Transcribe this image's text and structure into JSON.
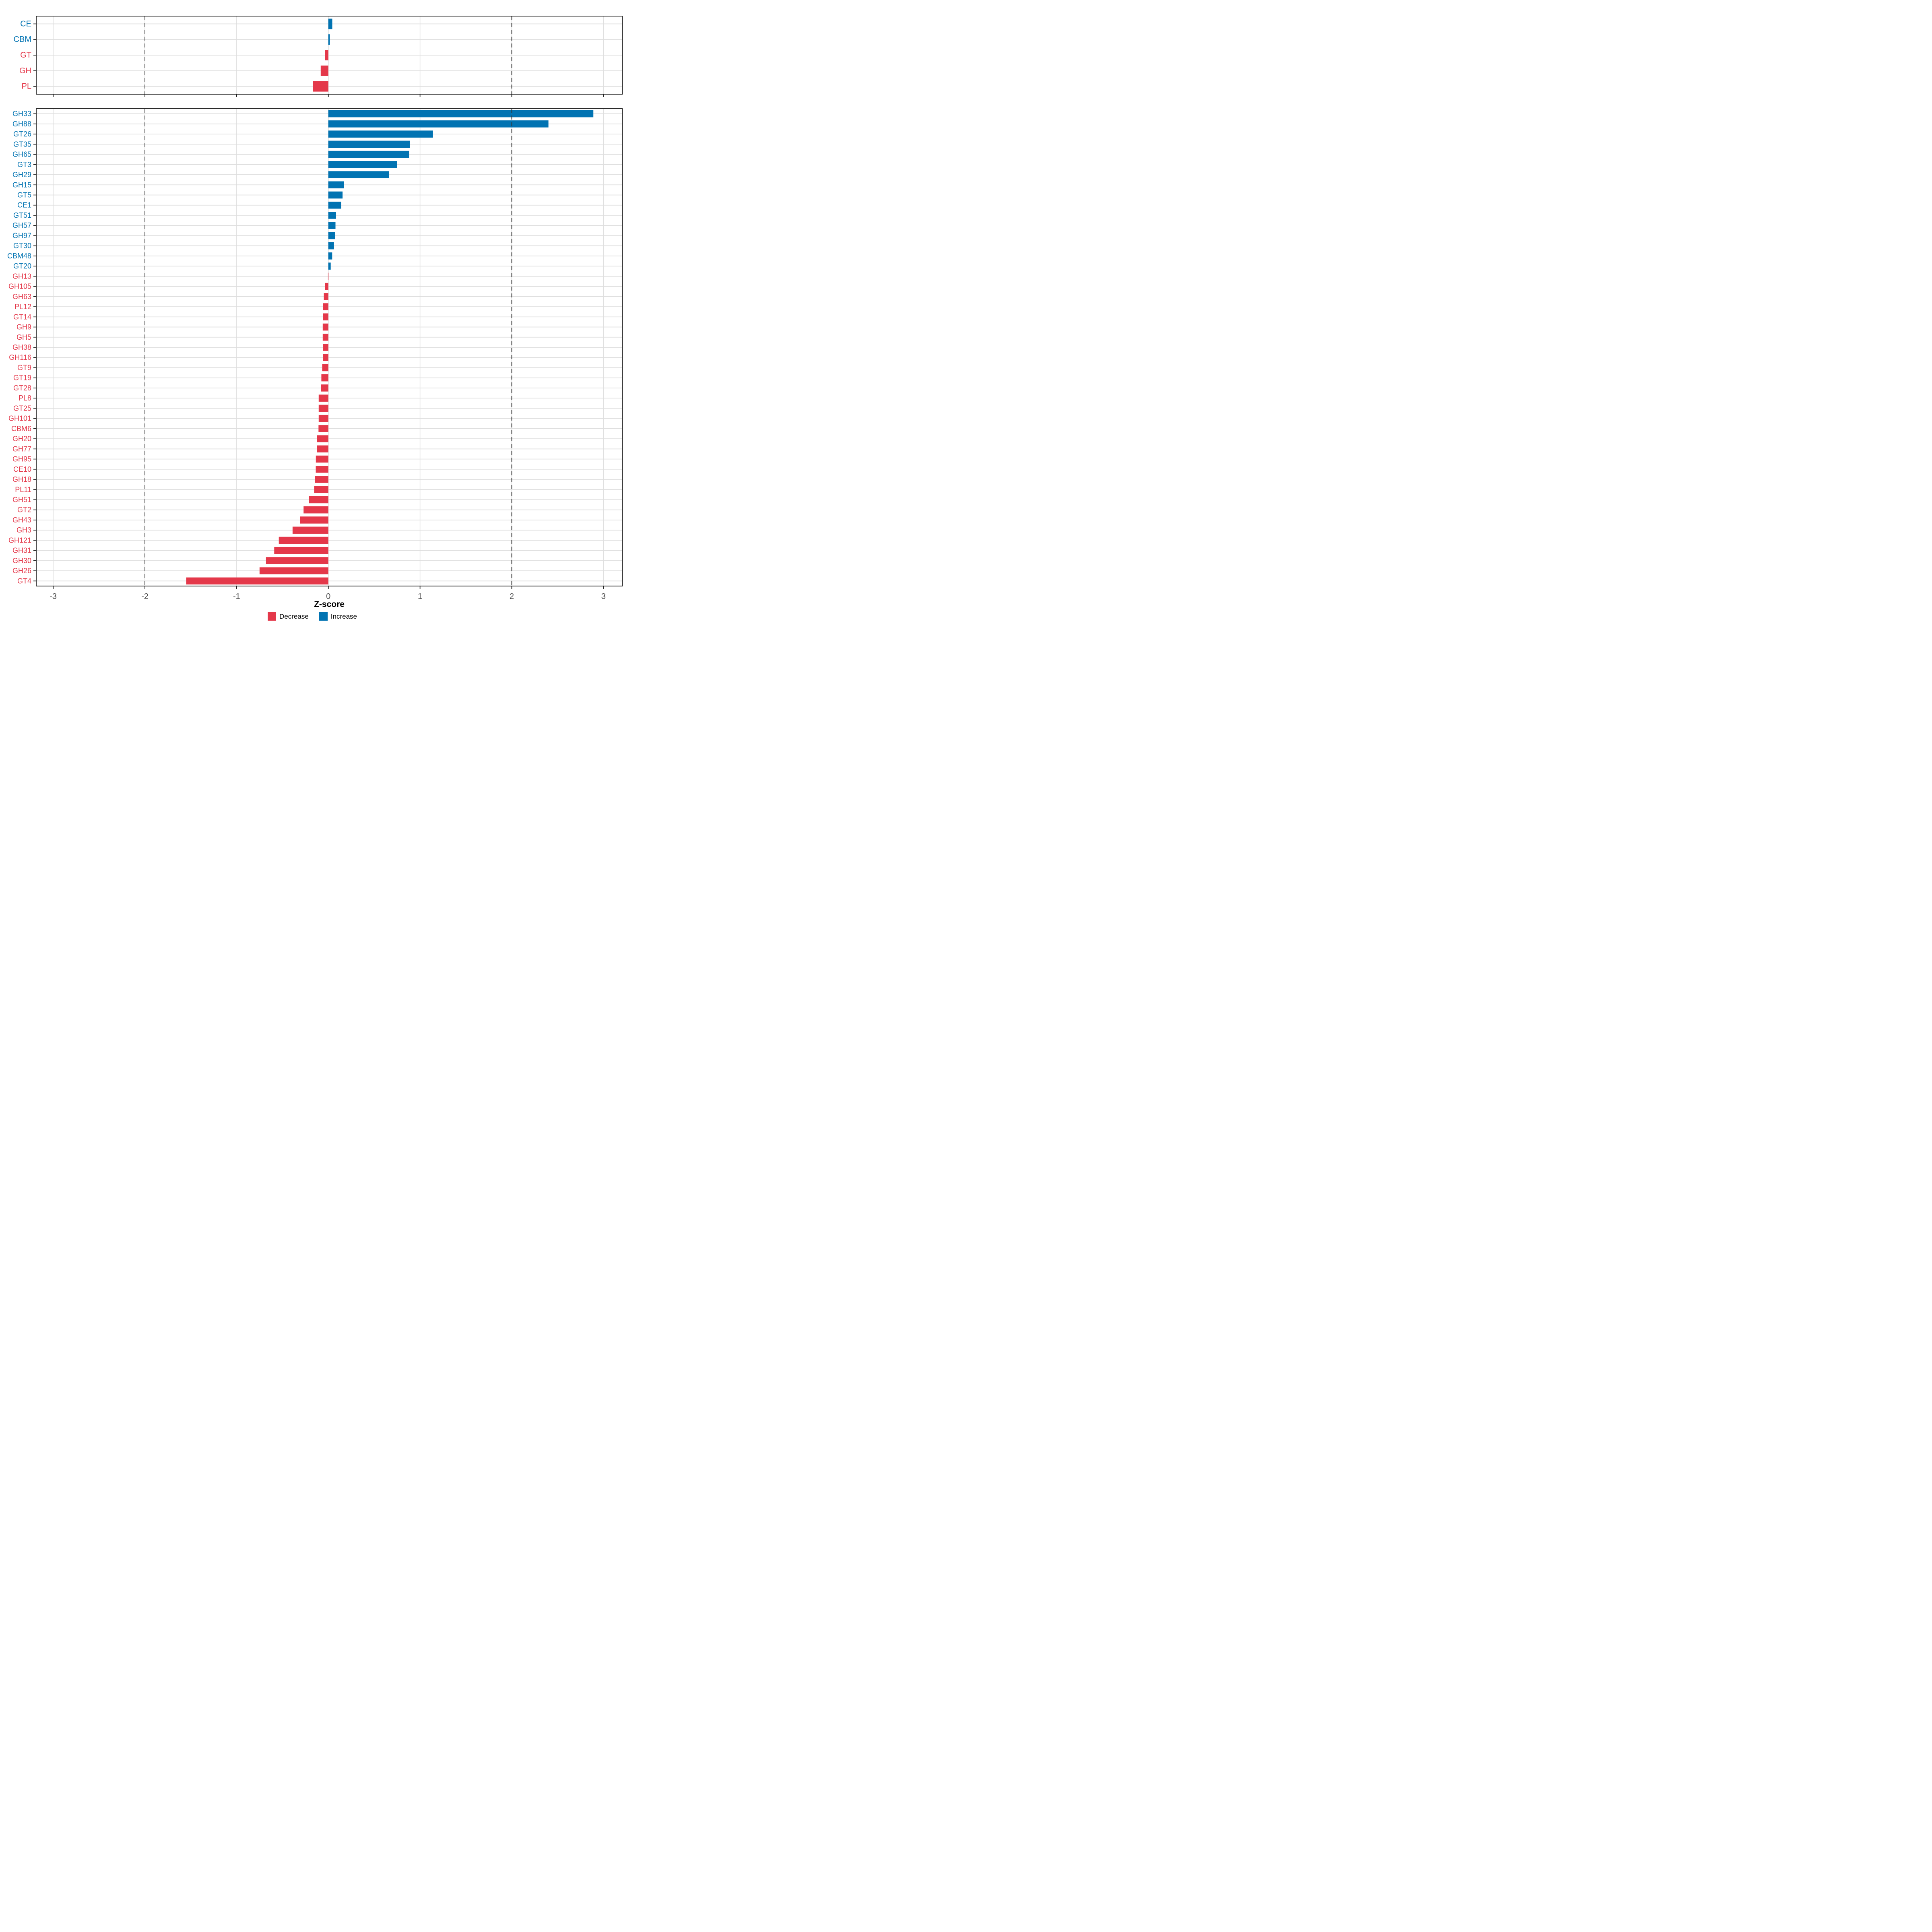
{
  "axis": {
    "title": "Z-score",
    "ticks": [
      -3,
      -2,
      -1,
      0,
      1,
      2,
      3
    ],
    "xlim": [
      -3.185,
      3.205
    ],
    "dashed_vlines": [
      -2,
      2
    ]
  },
  "colors": {
    "increase": "#0173B2",
    "decrease": "#E4384A",
    "grid": "#DEDEDE",
    "axis_text": "#4D4D4D",
    "panel_border": "#141414",
    "tick": "#1A1A1A",
    "dashed_line": "#333333",
    "background": "#FFFFFF"
  },
  "legend": {
    "items": [
      {
        "key": "decrease",
        "label": "Decrease"
      },
      {
        "key": "increase",
        "label": "Increase"
      }
    ]
  },
  "chart_data": [
    {
      "type": "bar",
      "orientation": "horizontal",
      "panel": "cazyme-class-summary",
      "xlabel": "",
      "categories": [
        "CE",
        "CBM",
        "GT",
        "GH",
        "PL"
      ],
      "values": [
        0.043,
        0.016,
        -0.035,
        -0.083,
        -0.166
      ],
      "xlim": [
        -3.185,
        3.205
      ],
      "xticks": [
        -3,
        -2,
        -1,
        0,
        1,
        2,
        3
      ],
      "dashed_vlines": [
        -2,
        2
      ],
      "grid": true,
      "show_x_tick_labels": false
    },
    {
      "type": "bar",
      "orientation": "horizontal",
      "panel": "cazyme-family-zscores",
      "xlabel": "Z-score",
      "categories": [
        "GH33",
        "GH88",
        "GT26",
        "GT35",
        "GH65",
        "GT3",
        "GH29",
        "GH15",
        "GT5",
        "CE1",
        "GT51",
        "GH57",
        "GH97",
        "GT30",
        "CBM48",
        "GT20",
        "GH13",
        "GH105",
        "GH63",
        "PL12",
        "GT14",
        "GH9",
        "GH5",
        "GH38",
        "GH116",
        "GT9",
        "GT19",
        "GT28",
        "PL8",
        "GT25",
        "GH101",
        "CBM6",
        "GH20",
        "GH77",
        "GH95",
        "CE10",
        "GH18",
        "PL11",
        "GH51",
        "GT2",
        "GH43",
        "GH3",
        "GH121",
        "GH31",
        "GH30",
        "GH26",
        "GT4"
      ],
      "values": [
        2.89,
        2.4,
        1.14,
        0.89,
        0.88,
        0.75,
        0.66,
        0.17,
        0.155,
        0.14,
        0.084,
        0.078,
        0.072,
        0.062,
        0.042,
        0.026,
        -0.004,
        -0.036,
        -0.049,
        -0.06,
        -0.06,
        -0.061,
        -0.061,
        -0.06,
        -0.06,
        -0.067,
        -0.076,
        -0.082,
        -0.105,
        -0.105,
        -0.105,
        -0.107,
        -0.124,
        -0.125,
        -0.136,
        -0.137,
        -0.145,
        -0.155,
        -0.21,
        -0.27,
        -0.31,
        -0.39,
        -0.54,
        -0.59,
        -0.68,
        -0.75,
        -1.55
      ],
      "xlim": [
        -3.185,
        3.205
      ],
      "xticks": [
        -3,
        -2,
        -1,
        0,
        1,
        2,
        3
      ],
      "dashed_vlines": [
        -2,
        2
      ],
      "grid": true,
      "show_x_tick_labels": true
    }
  ]
}
